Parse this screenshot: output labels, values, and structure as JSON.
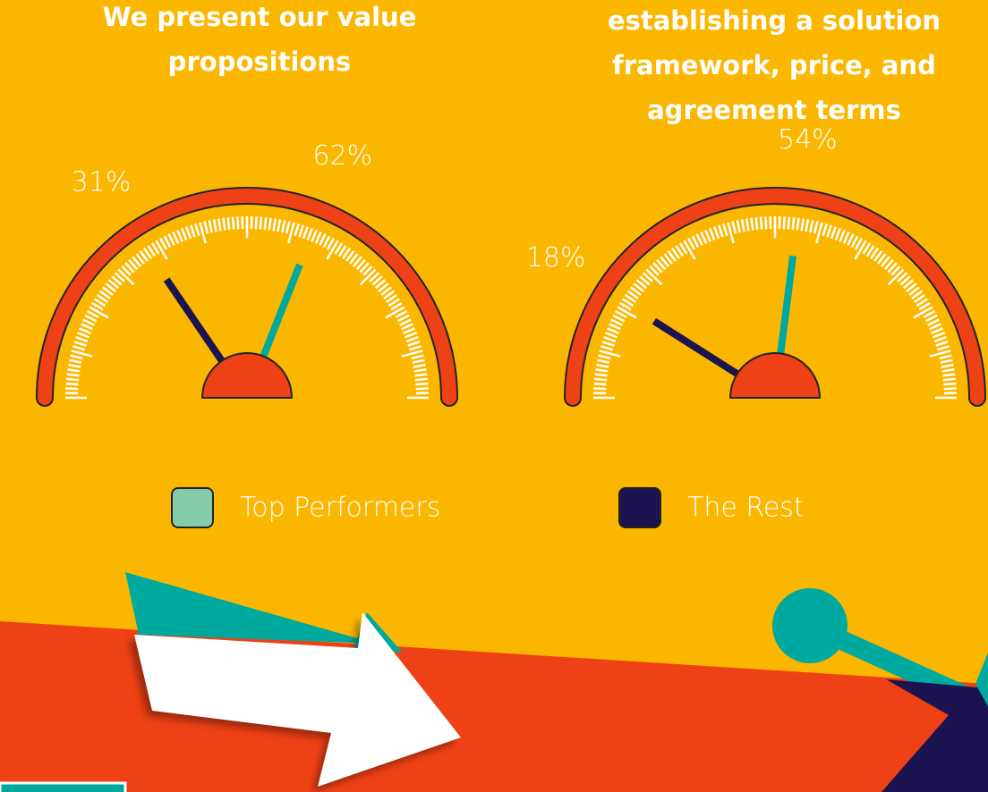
{
  "chart_data": [
    {
      "type": "gauge",
      "title": "We present our value propositions",
      "ylim": [
        0,
        100
      ],
      "series": [
        {
          "name": "Top Performers",
          "color": "#00A99D",
          "values": [
            62
          ],
          "value_labels": [
            "62%"
          ]
        },
        {
          "name": "The Rest",
          "color": "#1B1450",
          "values": [
            31
          ],
          "value_labels": [
            "31%"
          ]
        }
      ]
    },
    {
      "type": "gauge",
      "title": "establishing a solution framework, price, and agreement terms",
      "ylim": [
        0,
        100
      ],
      "series": [
        {
          "name": "Top Performers",
          "color": "#00A99D",
          "values": [
            54
          ],
          "value_labels": [
            "54%"
          ]
        },
        {
          "name": "The Rest",
          "color": "#1B1450",
          "values": [
            18
          ],
          "value_labels": [
            "18%"
          ]
        }
      ]
    }
  ]
}
